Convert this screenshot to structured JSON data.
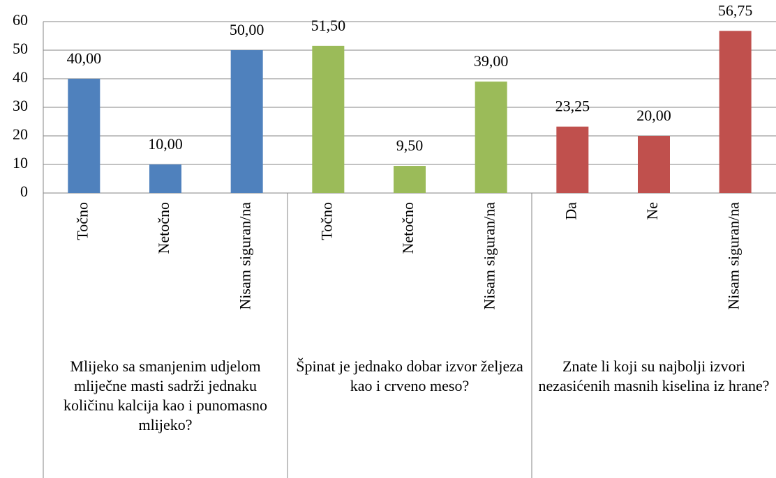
{
  "chart_data": {
    "type": "bar",
    "ylim": [
      0,
      60
    ],
    "yticks": [
      0,
      10,
      20,
      30,
      40,
      50,
      60
    ],
    "grid": true,
    "groups": [
      {
        "label": "Mlijeko sa smanjenim udjelom mliječne masti sadrži jednaku količinu kalcija kao i punomasno mlijeko?",
        "color": "#4f81bd",
        "categories": [
          "Točno",
          "Netočno",
          "Nisam siguran/na"
        ],
        "values": [
          40,
          10,
          50
        ],
        "value_labels": [
          "40,00",
          "10,00",
          "50,00"
        ]
      },
      {
        "label": "Špinat je jednako dobar izvor željeza kao i crveno meso?",
        "color": "#9bbb59",
        "categories": [
          "Točno",
          "Netočno",
          "Nisam siguran/na"
        ],
        "values": [
          51.5,
          9.5,
          39
        ],
        "value_labels": [
          "51,50",
          "9,50",
          "39,00"
        ]
      },
      {
        "label": "Znate li koji su najbolji izvori nezasićenih masnih kiselina iz hrane?",
        "color": "#c0504d",
        "categories": [
          "Da",
          "Ne",
          "Nisam siguran/na"
        ],
        "values": [
          23.25,
          20,
          56.75
        ],
        "value_labels": [
          "23,25",
          "20,00",
          "56,75"
        ]
      }
    ]
  }
}
